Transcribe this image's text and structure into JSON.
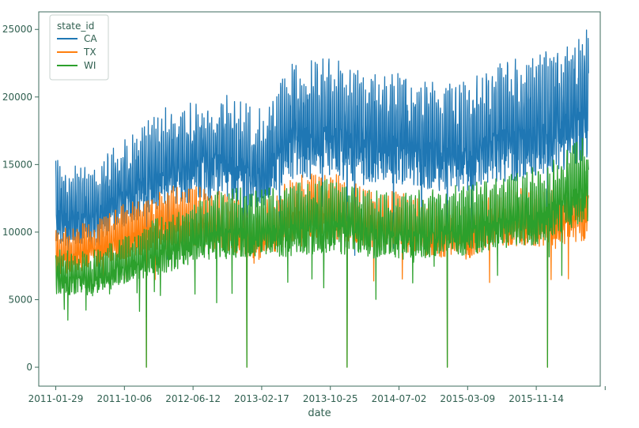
{
  "chart_data": {
    "type": "line",
    "title": "",
    "xlabel": "date",
    "ylabel": "",
    "ylim": [
      -1400,
      26300
    ],
    "yticks": [
      0,
      5000,
      10000,
      15000,
      20000,
      25000
    ],
    "ytick_labels": [
      "0",
      "5000",
      "10000",
      "15000",
      "20000",
      "25000"
    ],
    "xlim": [
      "2010-11-28",
      "2016-07-04"
    ],
    "xticks": [
      "2011-01-29",
      "2011-10-06",
      "2012-06-12",
      "2013-02-17",
      "2013-10-25",
      "2014-07-02",
      "2015-03-09",
      "2015-11-14",
      "2016-07-22"
    ],
    "xtick_labels": [
      "2011-01-29",
      "2011-10-06",
      "2012-06-12",
      "2013-02-17",
      "2013-10-25",
      "2014-07-02",
      "2015-03-09",
      "2015-11-14",
      ""
    ],
    "x_start": "2011-01-29",
    "x_end": "2016-05-22",
    "grid": false,
    "legend": {
      "title": "state_id",
      "placement": "top-left"
    },
    "zero_days": [
      "2011-12-25",
      "2012-12-25",
      "2013-12-25",
      "2014-12-25",
      "2015-12-25"
    ],
    "series": [
      {
        "name": "CA",
        "color": "#1f77b4",
        "key_dates": [
          "2011-01-29",
          "2011-06-01",
          "2011-10-06",
          "2012-03-01",
          "2012-06-12",
          "2012-10-01",
          "2013-02-17",
          "2013-06-01",
          "2013-10-25",
          "2014-03-01",
          "2014-07-02",
          "2014-11-01",
          "2015-03-09",
          "2015-07-01",
          "2015-11-14",
          "2016-03-01",
          "2016-05-22"
        ],
        "mid": [
          11700,
          11300,
          13200,
          15000,
          15300,
          15800,
          14800,
          17500,
          17800,
          17200,
          17000,
          16500,
          16300,
          17400,
          17800,
          18600,
          19500
        ],
        "amp": [
          2300,
          2200,
          2400,
          2700,
          2700,
          2900,
          2700,
          3200,
          3300,
          3100,
          3000,
          3000,
          3000,
          3300,
          3300,
          3500,
          3600
        ]
      },
      {
        "name": "TX",
        "color": "#ff7f0e",
        "key_dates": [
          "2011-01-29",
          "2011-06-01",
          "2011-10-06",
          "2012-03-01",
          "2012-06-12",
          "2012-10-01",
          "2013-02-17",
          "2013-06-01",
          "2013-10-25",
          "2014-03-01",
          "2014-07-02",
          "2014-11-01",
          "2015-03-09",
          "2015-07-01",
          "2015-11-14",
          "2016-03-01",
          "2016-05-22"
        ],
        "mid": [
          8200,
          8700,
          9700,
          10700,
          10700,
          10500,
          9600,
          11400,
          11600,
          10700,
          10400,
          9900,
          9700,
          10900,
          10700,
          11100,
          11500
        ],
        "amp": [
          1200,
          1300,
          1500,
          1700,
          1700,
          1700,
          1500,
          1800,
          1800,
          1600,
          1600,
          1500,
          1500,
          1600,
          1600,
          1700,
          1800
        ]
      },
      {
        "name": "WI",
        "color": "#2ca02c",
        "key_dates": [
          "2011-01-29",
          "2011-06-01",
          "2011-10-06",
          "2012-03-01",
          "2012-06-12",
          "2012-10-01",
          "2013-02-17",
          "2013-06-01",
          "2013-10-25",
          "2014-03-01",
          "2014-07-02",
          "2014-11-01",
          "2015-03-09",
          "2015-07-01",
          "2015-11-14",
          "2016-03-01",
          "2016-05-22"
        ],
        "mid": [
          6800,
          6600,
          7600,
          8800,
          9600,
          10200,
          10300,
          10500,
          10800,
          10300,
          10000,
          10300,
          10500,
          11000,
          11500,
          12800,
          13500
        ],
        "amp": [
          1200,
          1200,
          1300,
          1600,
          1700,
          1900,
          1900,
          2000,
          2000,
          1900,
          1800,
          1900,
          1900,
          2000,
          2100,
          2300,
          2400
        ]
      }
    ]
  }
}
